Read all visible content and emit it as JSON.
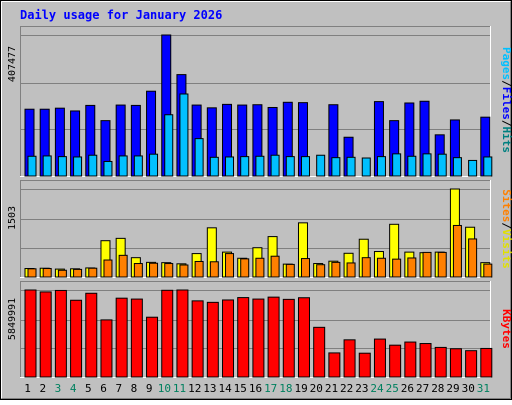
{
  "chart_data": {
    "type": "bar",
    "title": "Daily usage for January 2026",
    "categories": [
      "1",
      "2",
      "3",
      "4",
      "5",
      "6",
      "7",
      "8",
      "9",
      "10",
      "11",
      "12",
      "13",
      "14",
      "15",
      "16",
      "17",
      "18",
      "19",
      "20",
      "21",
      "22",
      "23",
      "24",
      "25",
      "26",
      "27",
      "28",
      "29",
      "30",
      "31"
    ],
    "weekend_days": [
      "3",
      "4",
      "10",
      "11",
      "17",
      "18",
      "24",
      "25",
      "31"
    ],
    "panels": [
      {
        "id": "hits",
        "ymax_label": "407477",
        "ymax": 407477,
        "legend": [
          "Pages",
          "Files",
          "Hits"
        ],
        "series": [
          {
            "name": "Hits",
            "color": "#0000ff",
            "values": [
              193000,
              193000,
              196000,
              188000,
              204000,
              160000,
              205000,
              204000,
              245000,
              407477,
              293000,
              205000,
              197000,
              207000,
              205000,
              206000,
              198000,
              213000,
              212000,
              0,
              206000,
              112000,
              0,
              215000,
              160000,
              211000,
              216000,
              119000,
              162000,
              0,
              170000
            ]
          },
          {
            "name": "Files",
            "color": "#00c0ff",
            "values": [
              57000,
              58000,
              56000,
              55000,
              60000,
              42000,
              58000,
              58000,
              63000,
              177000,
              237000,
              108000,
              54000,
              55000,
              56000,
              57000,
              60000,
              56000,
              56000,
              60000,
              53000,
              54000,
              52000,
              56000,
              64000,
              57000,
              64000,
              63000,
              53000,
              45000,
              55000
            ]
          },
          {
            "name": "Pages",
            "color": "#00ff00",
            "values": [
              0,
              0,
              0,
              0,
              0,
              0,
              0,
              0,
              0,
              0,
              0,
              0,
              0,
              0,
              0,
              0,
              0,
              0,
              0,
              0,
              0,
              0,
              0,
              0,
              0,
              0,
              0,
              0,
              0,
              0,
              0
            ]
          }
        ]
      },
      {
        "id": "visits",
        "ymax_label": "1503",
        "ymax": 1503,
        "legend": [
          "Sites",
          "Visits"
        ],
        "series": [
          {
            "name": "Visits",
            "color": "#ffff00",
            "values": [
              145,
              150,
              135,
              140,
              155,
              620,
              660,
              330,
              250,
              245,
              225,
              400,
              840,
              425,
              320,
              500,
              690,
              220,
              925,
              230,
              270,
              405,
              645,
              435,
              900,
              425,
              415,
              425,
              1503,
              850,
              245
            ]
          },
          {
            "name": "Sites",
            "color": "#ff8000",
            "values": [
              140,
              145,
              115,
              130,
              150,
              290,
              370,
              230,
              235,
              230,
              205,
              265,
              260,
              400,
              310,
              320,
              355,
              215,
              315,
              210,
              250,
              240,
              330,
              320,
              305,
              325,
              420,
              420,
              880,
              650,
              220
            ]
          }
        ]
      },
      {
        "id": "kbytes",
        "ymax_label": "5849991",
        "ymax": 5849991,
        "legend": [
          "KBytes"
        ],
        "series": [
          {
            "name": "KBytes",
            "color": "#ff0000",
            "values": [
              5849991,
              5720000,
              5820000,
              5160000,
              5630000,
              3840000,
              5300000,
              5240000,
              4020000,
              5830000,
              5850000,
              5120000,
              5020000,
              5180000,
              5340000,
              5240000,
              5370000,
              5220000,
              5330000,
              3340000,
              1620000,
              2500000,
              1600000,
              2550000,
              2140000,
              2350000,
              2250000,
              1990000,
              1900000,
              1770000,
              1920000
            ]
          }
        ]
      }
    ],
    "kbytes_series_split": [
      1900000,
      1770000,
      1920000
    ]
  }
}
